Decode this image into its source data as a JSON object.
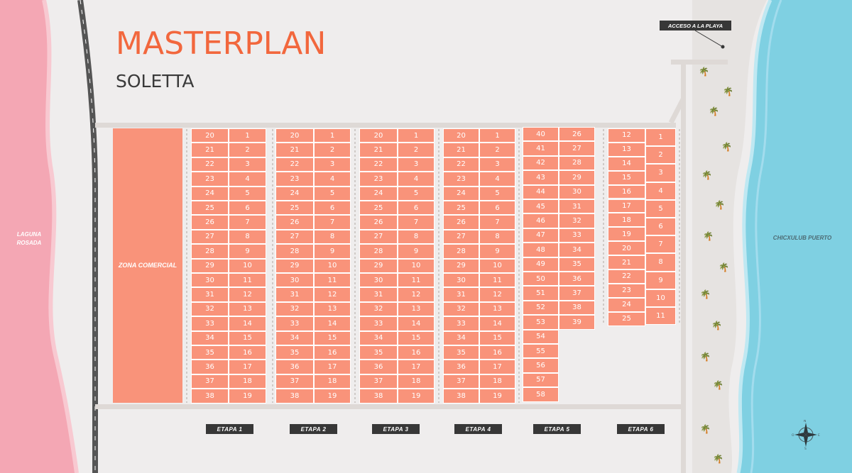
{
  "title": "MASTERPLAN",
  "subtitle": "SOLETTA",
  "labels": {
    "laguna": "LAGUNA\nROSADA",
    "chicxulub": "CHICXULUB PUERTO",
    "acceso": "ACCESO A LA PLAYA",
    "zona_comercial": "ZONA COMERCIAL"
  },
  "compass_letters": [
    "N",
    "E",
    "S",
    "O"
  ],
  "colors": {
    "lot": "#f9937a",
    "title": "#f2673d",
    "laguna": "#f4a7b4",
    "sea": "#7fd0e2",
    "tag": "#373737"
  },
  "etapas": [
    "ETAPA 1",
    "ETAPA 2",
    "ETAPA 3",
    "ETAPA 4",
    "ETAPA 5",
    "ETAPA 6"
  ],
  "blocks": [
    {
      "left": [
        "20",
        "21",
        "22",
        "23",
        "24",
        "25",
        "26",
        "27",
        "28",
        "29",
        "30",
        "31",
        "32",
        "33",
        "34",
        "35",
        "36",
        "37",
        "38"
      ],
      "right": [
        "1",
        "2",
        "3",
        "4",
        "5",
        "6",
        "7",
        "8",
        "9",
        "10",
        "11",
        "12",
        "13",
        "14",
        "15",
        "16",
        "17",
        "18",
        "19"
      ]
    },
    {
      "left": [
        "20",
        "21",
        "22",
        "23",
        "24",
        "25",
        "26",
        "27",
        "28",
        "29",
        "30",
        "31",
        "32",
        "33",
        "34",
        "35",
        "36",
        "37",
        "38"
      ],
      "right": [
        "1",
        "2",
        "3",
        "4",
        "5",
        "6",
        "7",
        "8",
        "9",
        "10",
        "11",
        "12",
        "13",
        "14",
        "15",
        "16",
        "17",
        "18",
        "19"
      ]
    },
    {
      "left": [
        "20",
        "21",
        "22",
        "23",
        "24",
        "25",
        "26",
        "27",
        "28",
        "29",
        "30",
        "31",
        "32",
        "33",
        "34",
        "35",
        "36",
        "37",
        "38"
      ],
      "right": [
        "1",
        "2",
        "3",
        "4",
        "5",
        "6",
        "7",
        "8",
        "9",
        "10",
        "11",
        "12",
        "13",
        "14",
        "15",
        "16",
        "17",
        "18",
        "19"
      ]
    },
    {
      "left": [
        "20",
        "21",
        "22",
        "23",
        "24",
        "25",
        "26",
        "27",
        "28",
        "29",
        "30",
        "31",
        "32",
        "33",
        "34",
        "35",
        "36",
        "37",
        "38"
      ],
      "right": [
        "1",
        "2",
        "3",
        "4",
        "5",
        "6",
        "7",
        "8",
        "9",
        "10",
        "11",
        "12",
        "13",
        "14",
        "15",
        "16",
        "17",
        "18",
        "19"
      ]
    },
    {
      "left": [
        "40",
        "41",
        "42",
        "43",
        "44",
        "45",
        "46",
        "47",
        "48",
        "49",
        "50",
        "51",
        "52",
        "53",
        "54",
        "55",
        "56",
        "57",
        "58"
      ],
      "right": [
        "26",
        "27",
        "28",
        "29",
        "30",
        "31",
        "32",
        "33",
        "34",
        "35",
        "36",
        "37",
        "38",
        "39"
      ]
    },
    {
      "left": [
        "12",
        "13",
        "14",
        "15",
        "16",
        "17",
        "18",
        "19",
        "20",
        "21",
        "22",
        "23",
        "24",
        "25"
      ],
      "right": [
        "1",
        "2",
        "3",
        "4",
        "5",
        "6",
        "7",
        "8",
        "9",
        "10",
        "11"
      ]
    }
  ]
}
